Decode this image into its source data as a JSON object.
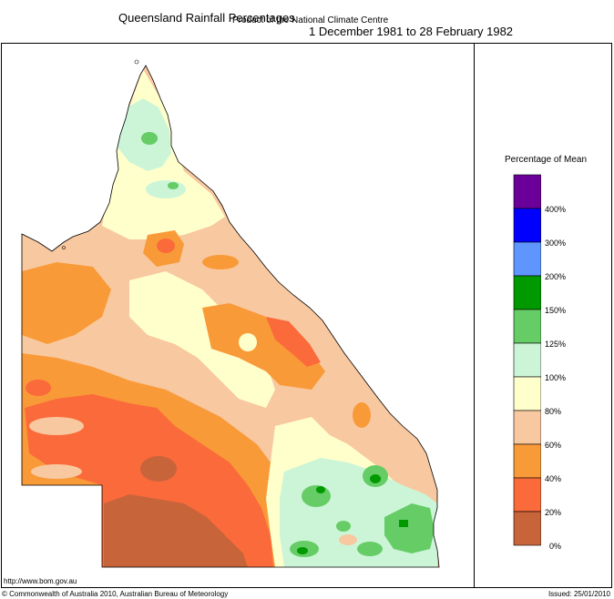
{
  "header": {
    "title": "Queensland Rainfall Percentages",
    "period": "1 December 1981 to 28 February 1982",
    "subtitle": "Product of the National Climate Centre"
  },
  "legend": {
    "title": "Percentage of Mean",
    "bands": [
      {
        "label": "400%",
        "color": "#6a0099"
      },
      {
        "label": "300%",
        "color": "#0000ff"
      },
      {
        "label": "200%",
        "color": "#5f95ff"
      },
      {
        "label": "150%",
        "color": "#009900"
      },
      {
        "label": "125%",
        "color": "#66cc66"
      },
      {
        "label": "100%",
        "color": "#ccf5d8"
      },
      {
        "label": "80%",
        "color": "#ffffcc"
      },
      {
        "label": "60%",
        "color": "#f8c8a0"
      },
      {
        "label": "40%",
        "color": "#f99a38"
      },
      {
        "label": "20%",
        "color": "#fb6a3a"
      },
      {
        "label": "0%",
        "color": "#c8643a"
      }
    ],
    "bottom_label": "0%"
  },
  "footer": {
    "url": "http://www.bom.gov.au",
    "copyright": "© Commonwealth of Australia 2010, Australian Bureau of Meteorology",
    "issued": "Issued: 25/01/2010"
  }
}
